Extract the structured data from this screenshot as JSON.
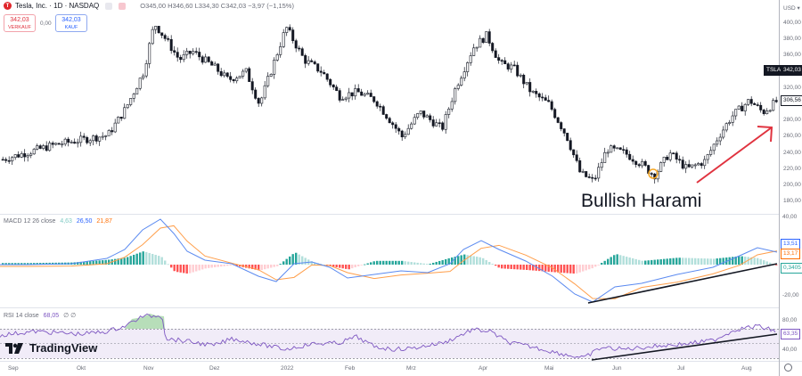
{
  "header": {
    "symbol_title": "Tesla, Inc. · 1D · NASDAQ",
    "logo_letter": "T",
    "ohlc": {
      "open": "O345,00",
      "high": "H346,60",
      "low": "L334,30",
      "close": "C342,03",
      "change": "−3,97 (−1,15%)"
    }
  },
  "trade": {
    "sell_price": "342,03",
    "sell_label": "VERKAUF",
    "spread": "0,00",
    "buy_price": "342,03",
    "buy_label": "KAUF"
  },
  "price_axis": {
    "currency": "USD",
    "ticks": [
      "400,00",
      "380,00",
      "360,00",
      "340,00",
      "320,00",
      "300,00",
      "280,00",
      "260,00",
      "240,00",
      "220,00",
      "200,00",
      "180,00"
    ],
    "symbol_tag": "TSLA",
    "last_price": "342,03",
    "crosshair_price": "306,56"
  },
  "annotation": {
    "text": "Bullish Harami",
    "arrow_color": "#e0333f",
    "marker_color": "#f5a623"
  },
  "macd": {
    "label": "MACD 12 26 close",
    "hist_value": "4,63",
    "macd_value": "26,50",
    "signal_value": "21,87",
    "axis_ticks": [
      "40,00",
      "-20,00"
    ],
    "tag_macd": "13,51",
    "tag_signal": "13,17",
    "tag_hist": "0,3405",
    "colors": {
      "macd": "#2962ff",
      "signal": "#ff6d00",
      "hist_up_strong": "#26a69a",
      "hist_up_weak": "#b2dfdb",
      "hist_down_strong": "#ff5252",
      "hist_down_weak": "#ffcdd2"
    }
  },
  "rsi": {
    "label": "RSI 14 close",
    "value": "68,05",
    "extra": "∅ ∅",
    "axis_ticks": [
      "80,00",
      "40,00"
    ],
    "tag": "63,35",
    "color": "#7e57c2"
  },
  "time_axis": {
    "labels": [
      "Sep",
      "Okt",
      "Nov",
      "Dez",
      "2022",
      "Feb",
      "Mrz",
      "Apr",
      "Mai",
      "Jun",
      "Jul",
      "Aug"
    ]
  },
  "branding": {
    "name": "TradingView"
  },
  "chart_data": [
    {
      "type": "candlestick",
      "title": "Tesla, Inc. · 1D · NASDAQ",
      "ylabel": "USD",
      "ylim": [
        170,
        420
      ],
      "x_labels": [
        "Sep",
        "Okt",
        "Nov",
        "Dez",
        "2022",
        "Feb",
        "Mrz",
        "Apr",
        "Mai",
        "Jun",
        "Jul",
        "Aug"
      ],
      "approx_close_by_month": [
        {
          "month": "Sep",
          "close": 245
        },
        {
          "month": "Okt",
          "close": 262
        },
        {
          "month": "Nov (early)",
          "close": 400
        },
        {
          "month": "Nov (late)",
          "close": 370
        },
        {
          "month": "Dez",
          "close": 335
        },
        {
          "month": "2022",
          "close": 350
        },
        {
          "month": "Feb",
          "close": 300
        },
        {
          "month": "Mrz",
          "close": 280
        },
        {
          "month": "Apr",
          "close": 370
        },
        {
          "month": "Mai",
          "close": 290
        },
        {
          "month": "Jun",
          "close": 230
        },
        {
          "month": "Jul",
          "close": 240
        },
        {
          "month": "Aug",
          "close": 295
        }
      ],
      "last": {
        "open": 345.0,
        "high": 346.6,
        "low": 334.3,
        "close": 342.03
      },
      "annotations": [
        "Bullish Harami",
        "up arrow near Aug"
      ]
    },
    {
      "type": "line",
      "title": "MACD 12 26 close",
      "series": [
        {
          "name": "MACD",
          "last": 26.5
        },
        {
          "name": "Signal",
          "last": 21.87
        },
        {
          "name": "Histogram",
          "last": 4.63
        }
      ],
      "ylim": [
        -30,
        45
      ],
      "annotations": [
        "rising trendline from Jun low to Aug"
      ]
    },
    {
      "type": "line",
      "title": "RSI 14 close",
      "series": [
        {
          "name": "RSI",
          "last": 68.05
        }
      ],
      "ylim": [
        25,
        95
      ],
      "bands": [
        70,
        30
      ],
      "annotations": [
        "rising trendline from Jun to Aug"
      ]
    }
  ]
}
